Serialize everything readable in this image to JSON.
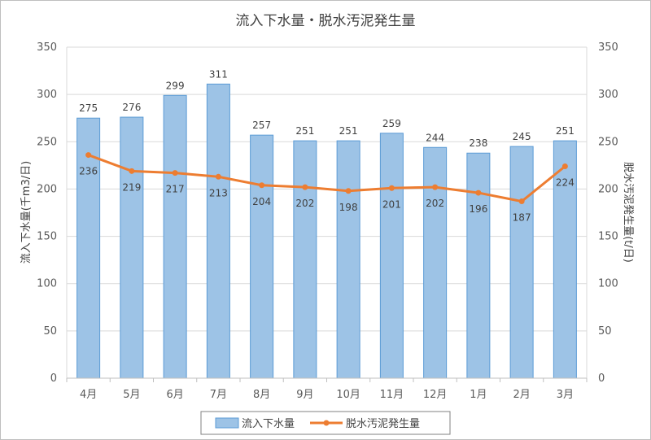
{
  "chart_data": {
    "type": "bar+line",
    "title": "流入下水量・脱水汚泥発生量",
    "categories": [
      "4月",
      "5月",
      "6月",
      "7月",
      "8月",
      "9月",
      "10月",
      "11月",
      "12月",
      "1月",
      "2月",
      "3月"
    ],
    "series": [
      {
        "name": "流入下水量",
        "type": "bar",
        "axis": "left",
        "color": "#9dc3e6",
        "stroke": "#5b9bd5",
        "values": [
          275,
          276,
          299,
          311,
          257,
          251,
          251,
          259,
          244,
          238,
          245,
          251
        ]
      },
      {
        "name": "脱水汚泥発生量",
        "type": "line",
        "axis": "right",
        "color": "#ed7d31",
        "values": [
          236,
          219,
          217,
          213,
          204,
          202,
          198,
          201,
          202,
          196,
          187,
          224
        ]
      }
    ],
    "ylabel_left": "流入下水量(千m3/日)",
    "ylabel_right": "脱水汚泥発生量(t/日)",
    "ylim": [
      0,
      350
    ],
    "yticks": [
      "0",
      "50",
      "100",
      "150",
      "200",
      "250",
      "300",
      "350"
    ],
    "grid": true,
    "legend_position": "bottom"
  }
}
